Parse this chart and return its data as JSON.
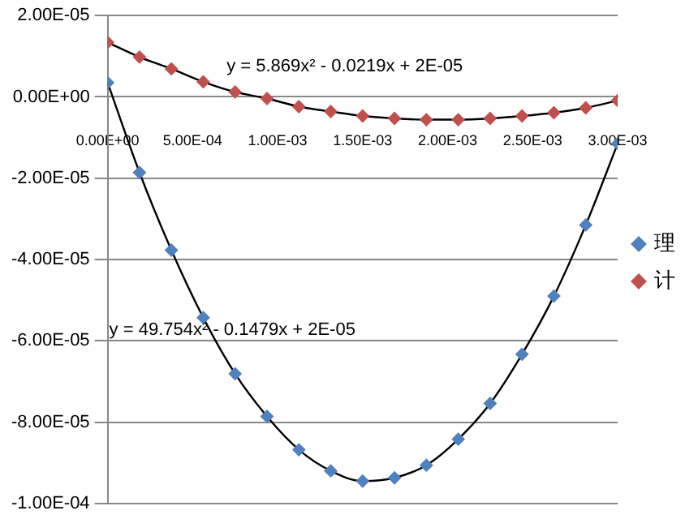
{
  "chart_data": {
    "type": "scatter",
    "x": [
      0,
      0.0001875,
      0.000375,
      0.0005625,
      0.00075,
      0.0009375,
      0.001125,
      0.0013125,
      0.0015,
      0.0016875,
      0.001875,
      0.0020625,
      0.00225,
      0.0024375,
      0.002625,
      0.0028125,
      0.003
    ],
    "series": [
      {
        "name": "理",
        "color": "#4f81bd",
        "marker": "diamond",
        "values": [
          3.5e-06,
          -1.86e-05,
          -3.77e-05,
          -5.43e-05,
          -6.81e-05,
          -7.86e-05,
          -8.68e-05,
          -9.2e-05,
          -9.45e-05,
          -9.37e-05,
          -9.06e-05,
          -8.42e-05,
          -7.54e-05,
          -6.33e-05,
          -4.9e-05,
          -3.15e-05,
          -1.15e-05
        ]
      },
      {
        "name": "计",
        "color": "#c0504d",
        "marker": "diamond",
        "values": [
          1.34e-05,
          9.8e-06,
          6.9e-06,
          3.7e-06,
          1.2e-06,
          -4e-07,
          -2.4e-06,
          -3.6e-06,
          -4.7e-06,
          -5.3e-06,
          -5.6e-06,
          -5.6e-06,
          -5.3e-06,
          -4.7e-06,
          -3.9e-06,
          -2.7e-06,
          -9e-07
        ]
      },
      {
        "type": "line",
        "color": "#000000",
        "marker": "none",
        "line_style": "solid",
        "x": [
          0,
          0.0001875,
          0.000375,
          0.0005625,
          0.00075,
          0.0009375,
          0.001125,
          0.0013125,
          0.0015,
          0.0016875,
          0.001875,
          0.0020625,
          0.00225,
          0.0024375,
          0.002625,
          0.0028125,
          0.003
        ],
        "values": [
          3.5e-06,
          -1.86e-05,
          -3.77e-05,
          -5.43e-05,
          -6.81e-05,
          -7.86e-05,
          -8.68e-05,
          -9.2e-05,
          -9.45e-05,
          -9.37e-05,
          -9.06e-05,
          -8.42e-05,
          -7.54e-05,
          -6.33e-05,
          -4.9e-05,
          -3.15e-05,
          -1.15e-05
        ]
      },
      {
        "type": "line",
        "color": "#000000",
        "marker": "none",
        "line_style": "solid",
        "x": [
          0,
          0.0001875,
          0.000375,
          0.0005625,
          0.00075,
          0.0009375,
          0.001125,
          0.0013125,
          0.0015,
          0.0016875,
          0.001875,
          0.0020625,
          0.00225,
          0.0024375,
          0.002625,
          0.0028125,
          0.003
        ],
        "values": [
          1.34e-05,
          9.8e-06,
          6.9e-06,
          3.7e-06,
          1.2e-06,
          -4e-07,
          -2.4e-06,
          -3.6e-06,
          -4.7e-06,
          -5.3e-06,
          -5.6e-06,
          -5.6e-06,
          -5.3e-06,
          -4.7e-06,
          -3.9e-06,
          -2.7e-06,
          -9e-07
        ]
      }
    ],
    "xlim": [
      0,
      0.003
    ],
    "xticks": [
      {
        "value": 0,
        "label": "0.00E+00"
      },
      {
        "value": 0.0005,
        "label": "5.00E-04"
      },
      {
        "value": 0.001,
        "label": "1.00E-03"
      },
      {
        "value": 0.0015,
        "label": "1.50E-03"
      },
      {
        "value": 0.002,
        "label": "2.00E-03"
      },
      {
        "value": 0.0025,
        "label": "2.50E-03"
      },
      {
        "value": 0.003,
        "label": "3.00E-03"
      }
    ],
    "ylim": [
      -0.0001,
      2e-05
    ],
    "yticks": [
      {
        "value": -0.0001,
        "label": "-1.00E-04"
      },
      {
        "value": -8e-05,
        "label": "-8.00E-05"
      },
      {
        "value": -6e-05,
        "label": "-6.00E-05"
      },
      {
        "value": -4e-05,
        "label": "-4.00E-05"
      },
      {
        "value": -2e-05,
        "label": "-2.00E-05"
      },
      {
        "value": 0,
        "label": "0.00E+00"
      },
      {
        "value": 2e-05,
        "label": "2.00E-05"
      }
    ],
    "grid": "y",
    "legend": "right",
    "annotations": [
      "y = 5.869x² - 0.0219x + 2E-05",
      "y = 49.754x² - 0.1479x + 2E-05"
    ]
  }
}
